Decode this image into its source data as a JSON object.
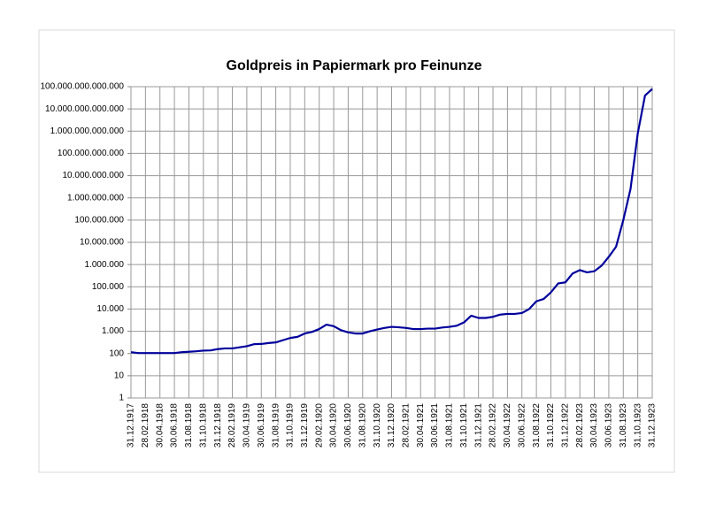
{
  "chart_data": {
    "type": "line",
    "title": "Goldpreis in Papiermark pro Feinunze",
    "categories": [
      "31.12.1917",
      null,
      "28.02.1918",
      null,
      "30.04.1918",
      null,
      "30.06.1918",
      null,
      "31.08.1918",
      null,
      "31.10.1918",
      null,
      "31.12.1918",
      null,
      "28.02.1919",
      null,
      "30.04.1919",
      null,
      "30.06.1919",
      null,
      "31.08.1919",
      null,
      "31.10.1919",
      null,
      "31.12.1919",
      null,
      "29.02.1920",
      null,
      "30.04.1920",
      null,
      "30.06.1920",
      null,
      "31.08.1920",
      null,
      "31.10.1920",
      null,
      "31.12.1920",
      null,
      "28.02.1921",
      null,
      "30.04.1921",
      null,
      "30.06.1921",
      null,
      "31.08.1921",
      null,
      "31.10.1921",
      null,
      "31.12.1921",
      null,
      "28.02.1922",
      null,
      "30.04.1922",
      null,
      "30.06.1922",
      null,
      "31.08.1922",
      null,
      "31.10.1922",
      null,
      "31.12.1922",
      null,
      "28.02.1923",
      null,
      "30.04.1923",
      null,
      "30.06.1923",
      null,
      "31.08.1923",
      null,
      "31.10.1923",
      null,
      "31.12.1923"
    ],
    "values": [
      115,
      105,
      105,
      105,
      105,
      105,
      105,
      115,
      120,
      126,
      135,
      138,
      158,
      170,
      170,
      190,
      214,
      263,
      269,
      295,
      316,
      398,
      501,
      562,
      794,
      933,
      1259,
      1995,
      1698,
      1122,
      891,
      794,
      794,
      1000,
      1202,
      1413,
      1585,
      1514,
      1413,
      1259,
      1259,
      1318,
      1318,
      1479,
      1585,
      1778,
      2512,
      5012,
      3981,
      3981,
      4467,
      5623,
      6026,
      6026,
      6607,
      10000,
      22387,
      28184,
      56234,
      141254,
      158489,
      398107,
      562341,
      446684,
      501187,
      891251,
      2238721,
      6309573,
      100000000,
      2511886432,
      794328234724,
      39810717055350,
      79432823472428
    ],
    "color": "#00009c",
    "ylim": [
      1,
      100000000000000
    ],
    "log_scale": true,
    "grid": true,
    "yticks": [
      1,
      10,
      100,
      {
        "value": 1000,
        "label": "1.000"
      },
      {
        "value": 10000,
        "label": "10.000"
      },
      {
        "value": 100000,
        "label": "100.000"
      },
      {
        "value": 1000000,
        "label": "1.000.000"
      },
      {
        "value": 10000000,
        "label": "10.000.000"
      },
      {
        "value": 100000000,
        "label": "100.000.000"
      },
      {
        "value": 1000000000,
        "label": "1.000.000.000"
      },
      {
        "value": 10000000000,
        "label": "10.000.000.000"
      },
      {
        "value": 100000000000,
        "label": "100.000.000.000"
      },
      {
        "value": 1000000000000,
        "label": "1.000.000.000.000"
      },
      {
        "value": 10000000000000,
        "label": "10.000.000.000.000"
      },
      {
        "value": 100000000000000,
        "label": "100.000.000.000.000"
      }
    ]
  }
}
